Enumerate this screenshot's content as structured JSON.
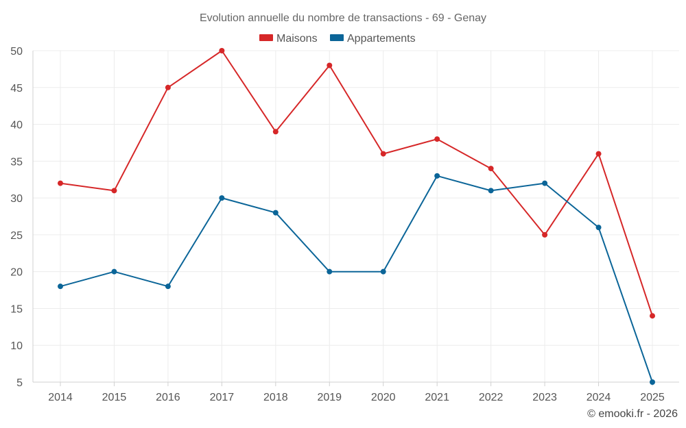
{
  "chart_data": {
    "type": "line",
    "title": "Evolution annuelle du nombre de transactions - 69 - Genay",
    "x": [
      "2014",
      "2015",
      "2016",
      "2017",
      "2018",
      "2019",
      "2020",
      "2021",
      "2022",
      "2023",
      "2024",
      "2025"
    ],
    "series": [
      {
        "name": "Maisons",
        "color": "#d62728",
        "values": [
          32,
          31,
          45,
          50,
          39,
          48,
          36,
          38,
          34,
          25,
          36,
          14
        ]
      },
      {
        "name": "Appartements",
        "color": "#0b6598",
        "values": [
          18,
          20,
          18,
          30,
          28,
          20,
          20,
          33,
          31,
          32,
          26,
          5
        ]
      }
    ],
    "yticks": [
      5,
      10,
      15,
      20,
      25,
      30,
      35,
      40,
      45,
      50
    ],
    "ylim": [
      5,
      50
    ],
    "xlabel": "",
    "ylabel": "",
    "grid": true,
    "legend": "top-center"
  },
  "credit": "© emooki.fr - 2026"
}
